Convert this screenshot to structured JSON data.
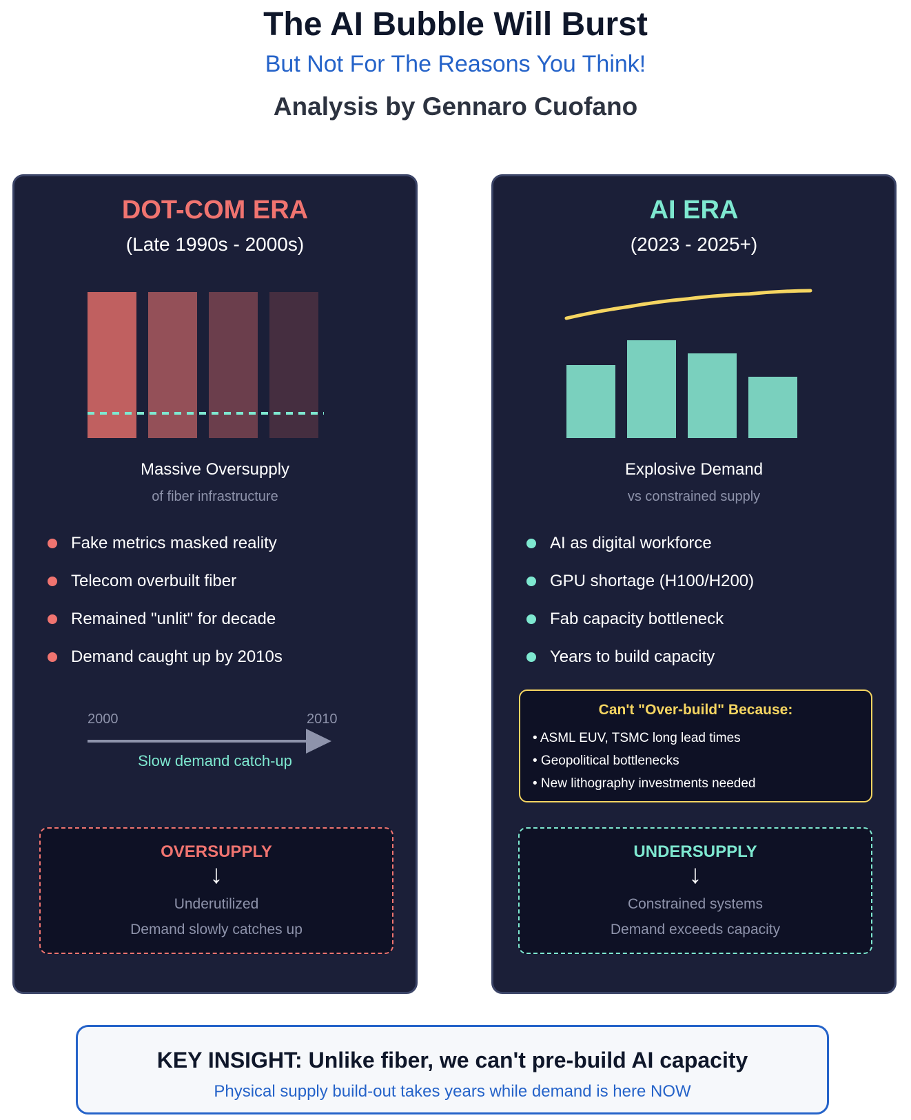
{
  "header": {
    "title": "The AI Bubble Will Burst",
    "subtitle": "But Not For The Reasons You Think!",
    "byline": "Analysis by Gennaro Cuofano"
  },
  "colors": {
    "dotcom_accent": "#f07470",
    "ai_accent": "#7ee8d0",
    "constraint_accent": "#f5d561",
    "brand_blue": "#2563c9",
    "panel_bg": "#1b1f38"
  },
  "dotcom": {
    "title": "DOT-COM ERA",
    "years": "(Late 1990s - 2000s)",
    "chart_caption": "Massive Oversupply",
    "chart_subcaption": "of fiber infrastructure",
    "bullets": [
      "Fake metrics masked reality",
      "Telecom overbuilt fiber",
      "Remained \"unlit\" for decade",
      "Demand caught up by 2010s"
    ],
    "timeline": {
      "start": "2000",
      "end": "2010",
      "label": "Slow demand catch-up"
    },
    "outcome": {
      "title": "OVERSUPPLY",
      "arrow": "↓",
      "line1": "Underutilized",
      "line2": "Demand slowly catches up"
    }
  },
  "ai": {
    "title": "AI ERA",
    "years": "(2023 - 2025+)",
    "chart_caption": "Explosive Demand",
    "chart_subcaption": "vs constrained supply",
    "bullets": [
      "AI as digital workforce",
      "GPU shortage (H100/H200)",
      "Fab capacity bottleneck",
      "Years to build capacity"
    ],
    "constraints": {
      "title": "Can't \"Over-build\" Because:",
      "items": [
        "• ASML EUV, TSMC long lead times",
        "• Geopolitical bottlenecks",
        "• New lithography investments needed"
      ]
    },
    "outcome": {
      "title": "UNDERSUPPLY",
      "arrow": "↓",
      "line1": "Constrained systems",
      "line2": "Demand exceeds capacity"
    }
  },
  "insight": {
    "title": "KEY INSIGHT: Unlike fiber, we can't pre-build AI capacity",
    "subtitle": "Physical supply build-out takes years while demand is here NOW"
  },
  "chart_data": [
    {
      "type": "bar",
      "name": "dotcom-supply",
      "categories": [
        "1",
        "2",
        "3",
        "4"
      ],
      "values": [
        1.0,
        1.0,
        1.0,
        1.0
      ],
      "demand_level": 0.17,
      "bar_colors": [
        "#c06060",
        "#945058",
        "#6b3e4c",
        "#452e40"
      ],
      "demand_color": "#7ee8d0",
      "ylim": [
        0,
        1
      ],
      "grid": false
    },
    {
      "type": "bar",
      "name": "ai-supply",
      "categories": [
        "1",
        "2",
        "3",
        "4"
      ],
      "values": [
        0.5,
        0.67,
        0.58,
        0.42
      ],
      "demand_curve": [
        0.83,
        0.9,
        0.95,
        0.98,
        1.0
      ],
      "bar_color": "#7ad0be",
      "curve_color": "#f5d561",
      "ylim": [
        0,
        1
      ],
      "grid": false
    }
  ]
}
